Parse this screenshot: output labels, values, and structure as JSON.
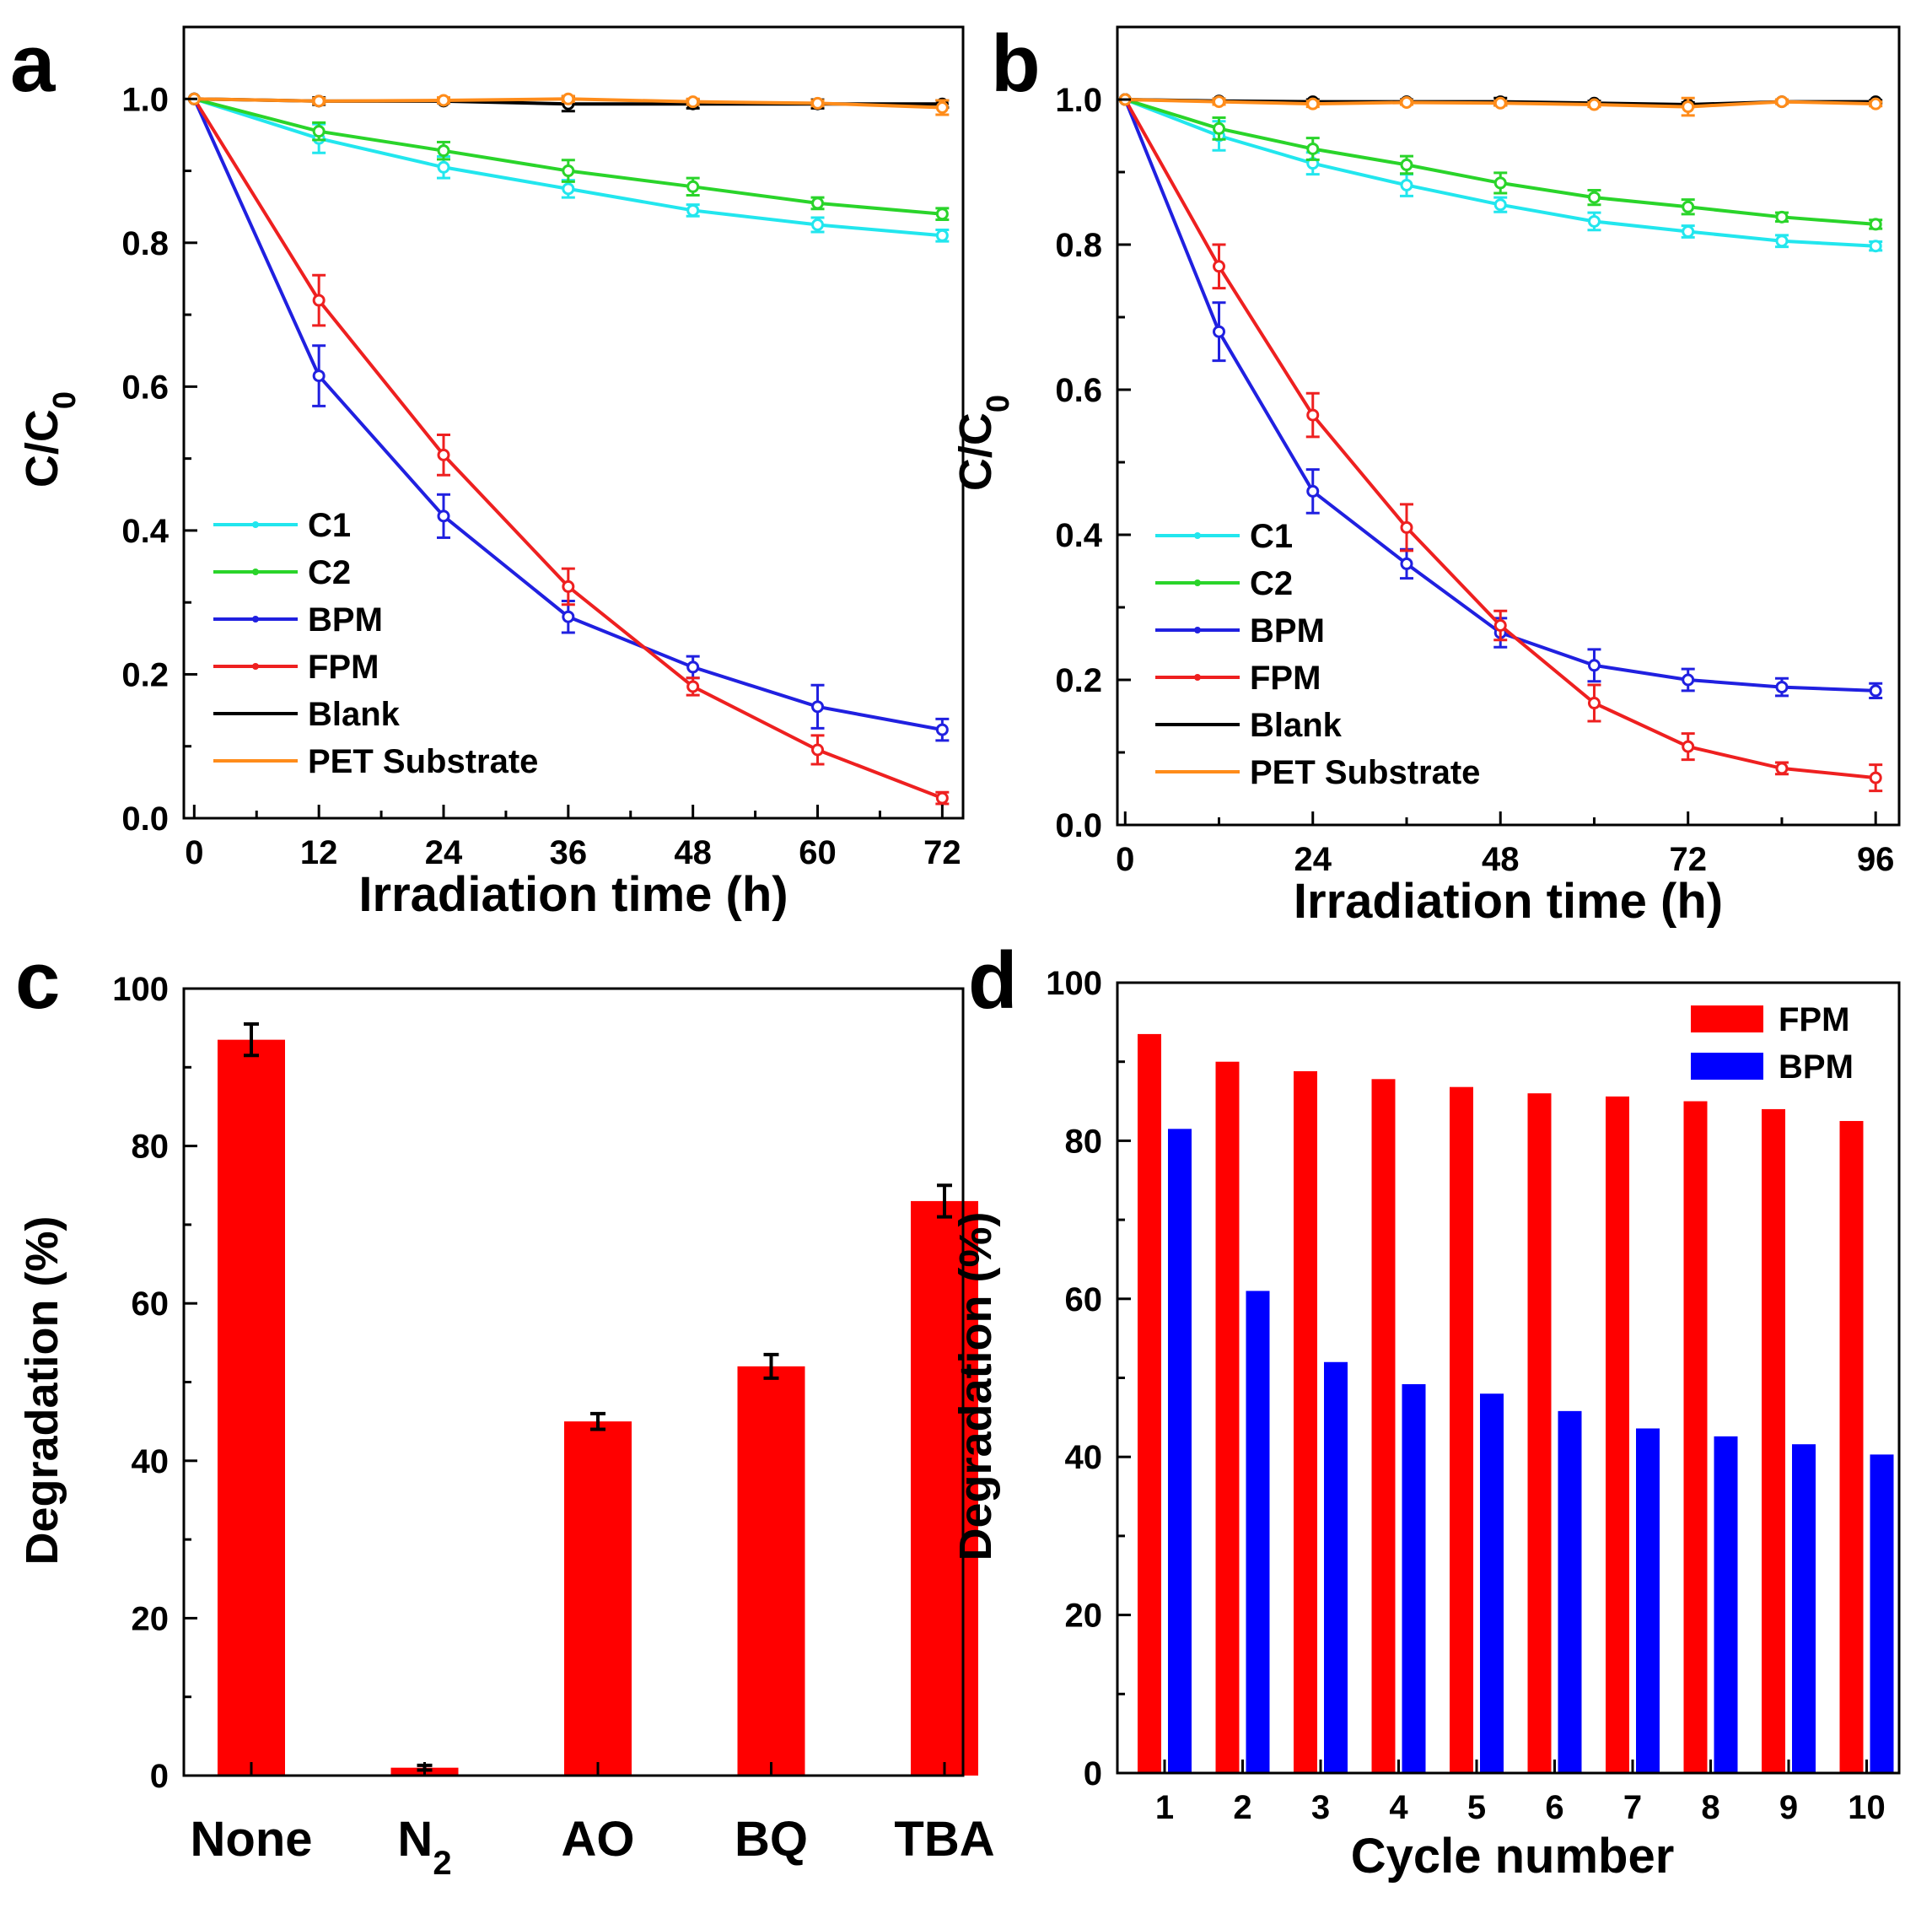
{
  "chart_data": [
    {
      "id": "a",
      "panel_label": "a",
      "type": "line",
      "xlabel": "Irradiation time (h)",
      "ylabel": "C/C",
      "ylabel_sub": "0",
      "xlim": [
        -1,
        74
      ],
      "ylim": [
        0,
        1.1
      ],
      "xticks": [
        0,
        12,
        24,
        36,
        48,
        60,
        72
      ],
      "yticks": [
        0.0,
        0.2,
        0.4,
        0.6,
        0.8,
        1.0
      ],
      "ytick_labels": [
        "0.0",
        "0.2",
        "0.4",
        "0.6",
        "0.8",
        "1.0"
      ],
      "x": [
        0,
        12,
        24,
        36,
        48,
        60,
        72
      ],
      "legend_position": "lower-left",
      "series": [
        {
          "name": "C1",
          "color": "#22e6ee",
          "values": [
            1.0,
            0.945,
            0.905,
            0.875,
            0.845,
            0.825,
            0.81
          ],
          "errors": [
            0,
            0.02,
            0.015,
            0.012,
            0.008,
            0.01,
            0.008
          ]
        },
        {
          "name": "C2",
          "color": "#2ad42a",
          "values": [
            1.0,
            0.955,
            0.928,
            0.9,
            0.878,
            0.855,
            0.84
          ],
          "errors": [
            0,
            0.012,
            0.012,
            0.015,
            0.012,
            0.008,
            0.008
          ]
        },
        {
          "name": "BPM",
          "color": "#2020e0",
          "values": [
            1.0,
            0.615,
            0.42,
            0.28,
            0.21,
            0.155,
            0.123
          ],
          "errors": [
            0,
            0.042,
            0.03,
            0.022,
            0.015,
            0.03,
            0.015
          ]
        },
        {
          "name": "FPM",
          "color": "#ee2020",
          "values": [
            1.0,
            0.72,
            0.505,
            0.322,
            0.183,
            0.095,
            0.028
          ],
          "errors": [
            0,
            0.035,
            0.028,
            0.025,
            0.012,
            0.02,
            0.008
          ]
        },
        {
          "name": "Blank",
          "color": "#000000",
          "values": [
            1.0,
            0.997,
            0.997,
            0.993,
            0.993,
            0.993,
            0.993
          ],
          "errors": [
            0,
            0.005,
            0.003,
            0.01,
            0.006,
            0.006,
            0.005
          ]
        },
        {
          "name": "PET Substrate",
          "color": "#ff8c1a",
          "values": [
            1.0,
            0.997,
            0.998,
            1.0,
            0.996,
            0.994,
            0.988
          ],
          "errors": [
            0,
            0.004,
            0.004,
            0.004,
            0.004,
            0.004,
            0.01
          ]
        }
      ]
    },
    {
      "id": "b",
      "panel_label": "b",
      "type": "line",
      "xlabel": "Irradiation time (h)",
      "ylabel": "C/C",
      "ylabel_sub": "0",
      "xlim": [
        -1,
        99
      ],
      "ylim": [
        0,
        1.1
      ],
      "xticks": [
        0,
        24,
        48,
        72,
        96
      ],
      "yticks": [
        0.0,
        0.2,
        0.4,
        0.6,
        0.8,
        1.0
      ],
      "ytick_labels": [
        "0.0",
        "0.2",
        "0.4",
        "0.6",
        "0.8",
        "1.0"
      ],
      "x": [
        0,
        12,
        24,
        36,
        48,
        60,
        72,
        84,
        96
      ],
      "legend_position": "lower-left",
      "series": [
        {
          "name": "C1",
          "color": "#22e6ee",
          "values": [
            1.0,
            0.95,
            0.912,
            0.882,
            0.855,
            0.832,
            0.818,
            0.805,
            0.798
          ],
          "errors": [
            0,
            0.02,
            0.015,
            0.015,
            0.01,
            0.012,
            0.008,
            0.008,
            0.006
          ]
        },
        {
          "name": "C2",
          "color": "#2ad42a",
          "values": [
            1.0,
            0.96,
            0.932,
            0.91,
            0.885,
            0.865,
            0.852,
            0.838,
            0.828
          ],
          "errors": [
            0,
            0.015,
            0.015,
            0.012,
            0.014,
            0.01,
            0.01,
            0.006,
            0.006
          ]
        },
        {
          "name": "BPM",
          "color": "#2020e0",
          "values": [
            1.0,
            0.68,
            0.46,
            0.36,
            0.265,
            0.22,
            0.2,
            0.19,
            0.185
          ],
          "errors": [
            0,
            0.04,
            0.03,
            0.02,
            0.02,
            0.022,
            0.015,
            0.012,
            0.01
          ]
        },
        {
          "name": "FPM",
          "color": "#ee2020",
          "values": [
            1.0,
            0.77,
            0.565,
            0.41,
            0.275,
            0.168,
            0.108,
            0.078,
            0.065
          ],
          "errors": [
            0,
            0.03,
            0.03,
            0.032,
            0.02,
            0.025,
            0.018,
            0.008,
            0.018
          ]
        },
        {
          "name": "Blank",
          "color": "#000000",
          "values": [
            1.0,
            0.998,
            0.997,
            0.997,
            0.997,
            0.995,
            0.993,
            0.997,
            0.997
          ],
          "errors": [
            0,
            0.003,
            0.003,
            0.003,
            0.005,
            0.003,
            0.003,
            0.002,
            0.002
          ]
        },
        {
          "name": "PET Substrate",
          "color": "#ff8c1a",
          "values": [
            1.0,
            0.997,
            0.994,
            0.996,
            0.995,
            0.993,
            0.99,
            0.997,
            0.994
          ],
          "errors": [
            0,
            0.004,
            0.004,
            0.003,
            0.003,
            0.003,
            0.012,
            0.003,
            0.003
          ]
        }
      ]
    },
    {
      "id": "c",
      "panel_label": "c",
      "type": "bar",
      "xlabel": "",
      "ylabel": "Degradation (%)",
      "ylim": [
        0,
        100
      ],
      "yticks": [
        0,
        20,
        40,
        60,
        80,
        100
      ],
      "categories": [
        "None",
        "N",
        "AO",
        "BQ",
        "TBA"
      ],
      "category_subscripts": [
        "",
        "2",
        "",
        "",
        ""
      ],
      "series": [
        {
          "name": "FPM",
          "color": "#ff0000",
          "values": [
            93.5,
            1.0,
            45.0,
            52.0,
            73.0
          ],
          "errors": [
            2.0,
            0.3,
            1.0,
            1.5,
            2.0
          ]
        }
      ]
    },
    {
      "id": "d",
      "panel_label": "d",
      "type": "bar",
      "xlabel": "Cycle number",
      "ylabel": "Degradation (%)",
      "ylim": [
        0,
        100
      ],
      "yticks": [
        0,
        20,
        40,
        60,
        80,
        100
      ],
      "categories": [
        "1",
        "2",
        "3",
        "4",
        "5",
        "6",
        "7",
        "8",
        "9",
        "10"
      ],
      "legend_position": "top-right",
      "series": [
        {
          "name": "FPM",
          "color": "#ff0000",
          "values": [
            93.5,
            90.0,
            88.8,
            87.8,
            86.8,
            86.0,
            85.6,
            85.0,
            84.0,
            82.5
          ]
        },
        {
          "name": "BPM",
          "color": "#0000ff",
          "values": [
            81.5,
            61.0,
            52.0,
            49.2,
            48.0,
            45.8,
            43.6,
            42.6,
            41.6,
            40.3
          ]
        }
      ]
    }
  ]
}
